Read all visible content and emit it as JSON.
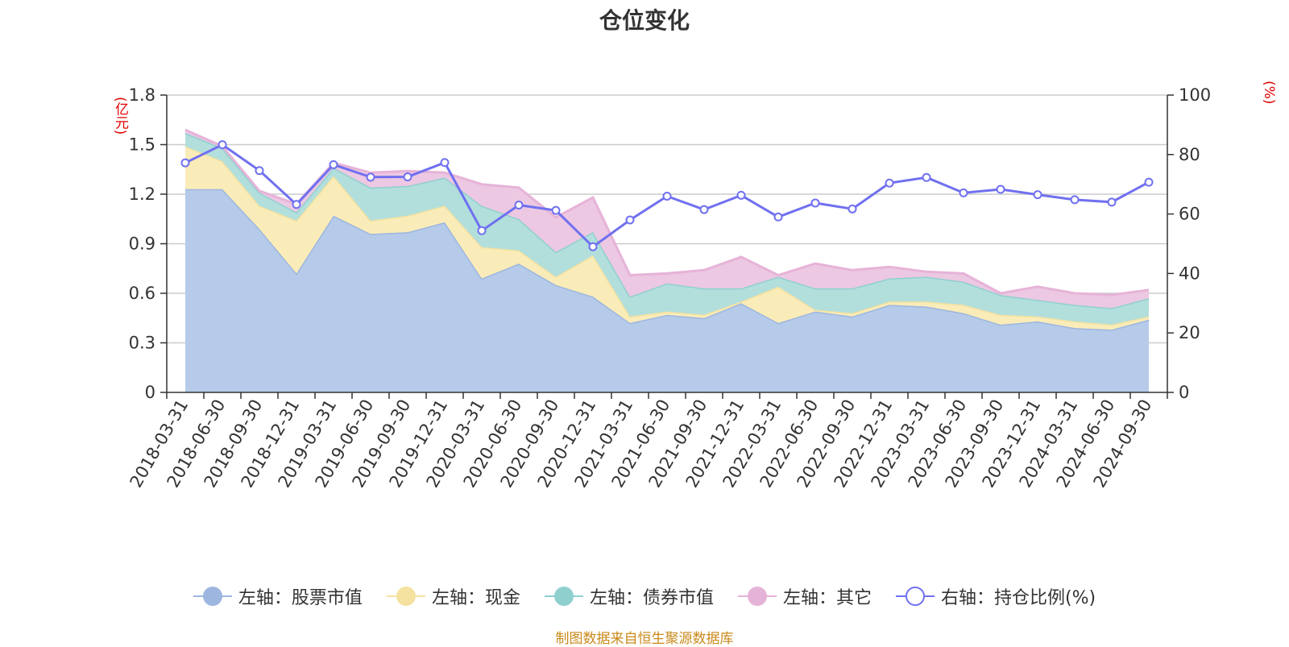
{
  "chart_data": {
    "type": "area",
    "title": "仓位变化",
    "left_axis_unit": "(亿元)",
    "right_axis_unit": "(%)",
    "left_ylim": [
      0,
      1.8
    ],
    "left_ticks": [
      0,
      0.3,
      0.6,
      0.9,
      1.2,
      1.5,
      1.8
    ],
    "right_ylim": [
      0,
      100
    ],
    "right_ticks": [
      0,
      20,
      40,
      60,
      80,
      100
    ],
    "categories": [
      "2018-03-31",
      "2018-06-30",
      "2018-09-30",
      "2018-12-31",
      "2019-03-31",
      "2019-06-30",
      "2019-09-30",
      "2019-12-31",
      "2020-03-31",
      "2020-06-30",
      "2020-09-30",
      "2020-12-31",
      "2021-03-31",
      "2021-06-30",
      "2021-09-30",
      "2021-12-31",
      "2022-03-31",
      "2022-06-30",
      "2022-09-30",
      "2022-12-31",
      "2023-03-31",
      "2023-06-30",
      "2023-09-30",
      "2023-12-31",
      "2024-03-31",
      "2024-06-30",
      "2024-09-30"
    ],
    "series": [
      {
        "name": "左轴：股票市值",
        "axis": "left",
        "color": "#9db6e0",
        "fill": "#b6cbe9",
        "values": [
          1.23,
          1.23,
          0.99,
          0.72,
          1.07,
          0.96,
          0.97,
          1.03,
          0.69,
          0.78,
          0.65,
          0.58,
          0.42,
          0.47,
          0.45,
          0.54,
          0.42,
          0.49,
          0.46,
          0.53,
          0.52,
          0.48,
          0.41,
          0.43,
          0.39,
          0.38,
          0.44
        ]
      },
      {
        "name": "左轴：现金",
        "axis": "left",
        "color": "#f5e1a0",
        "fill": "#faecb8",
        "values": [
          0.26,
          0.17,
          0.14,
          0.32,
          0.24,
          0.08,
          0.1,
          0.1,
          0.19,
          0.08,
          0.05,
          0.25,
          0.04,
          0.02,
          0.02,
          0.01,
          0.22,
          0.01,
          0.02,
          0.02,
          0.03,
          0.05,
          0.06,
          0.03,
          0.04,
          0.03,
          0.02
        ]
      },
      {
        "name": "左轴：债券市值",
        "axis": "left",
        "color": "#8fd0cf",
        "fill": "#b2dfdc",
        "values": [
          0.08,
          0.08,
          0.08,
          0.05,
          0.05,
          0.2,
          0.18,
          0.17,
          0.25,
          0.19,
          0.15,
          0.14,
          0.12,
          0.17,
          0.16,
          0.08,
          0.06,
          0.13,
          0.15,
          0.14,
          0.15,
          0.14,
          0.12,
          0.1,
          0.1,
          0.1,
          0.11
        ]
      },
      {
        "name": "左轴：其它",
        "axis": "left",
        "color": "#e6b3d8",
        "fill": "#ecc8e2",
        "values": [
          0.02,
          0.01,
          0.01,
          0.05,
          0.03,
          0.09,
          0.09,
          0.03,
          0.13,
          0.19,
          0.21,
          0.21,
          0.13,
          0.06,
          0.11,
          0.19,
          0.01,
          0.15,
          0.11,
          0.07,
          0.03,
          0.05,
          0.01,
          0.08,
          0.07,
          0.08,
          0.05
        ]
      },
      {
        "name": "右轴：持仓比例(%)",
        "axis": "right",
        "color": "#7070f0",
        "values": [
          77.2,
          83.3,
          74.6,
          63.2,
          76.6,
          72.4,
          72.5,
          77.3,
          54.4,
          63.0,
          61.2,
          49.0,
          58.0,
          66.0,
          61.5,
          66.3,
          59.0,
          63.7,
          61.7,
          70.4,
          72.3,
          67.1,
          68.3,
          66.5,
          64.8,
          64.0,
          70.7
        ]
      }
    ]
  },
  "footer": "制图数据来自恒生聚源数据库"
}
